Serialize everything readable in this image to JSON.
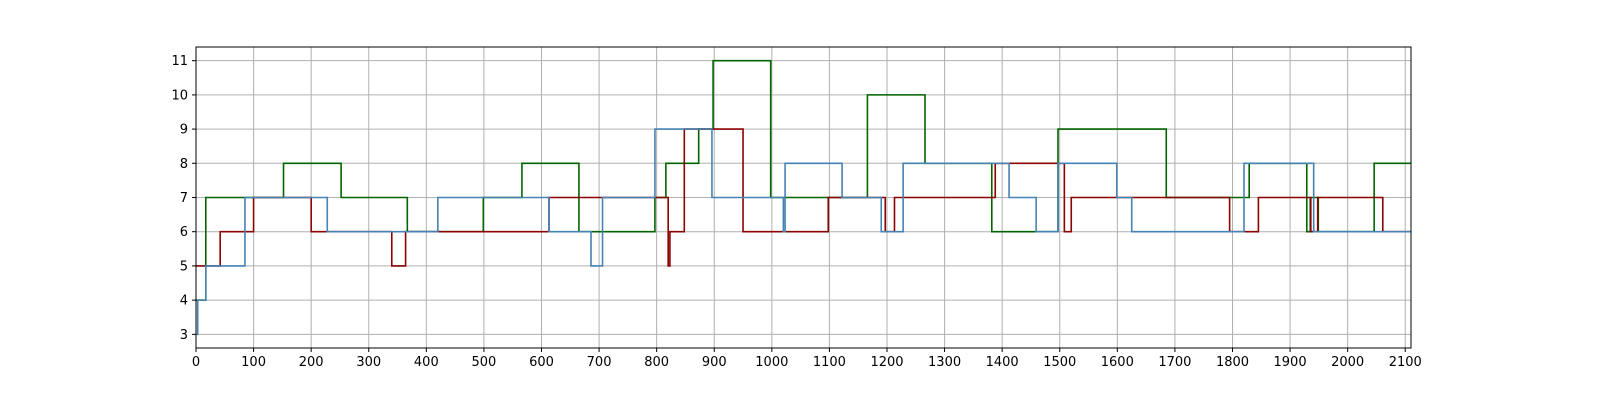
{
  "chart_data": {
    "type": "line",
    "title": "",
    "xlabel": "",
    "ylabel": "",
    "xlim": [
      0,
      2110
    ],
    "ylim": [
      2.6,
      11.4
    ],
    "x_ticks": [
      0,
      100,
      200,
      300,
      400,
      500,
      600,
      700,
      800,
      900,
      1000,
      1100,
      1200,
      1300,
      1400,
      1500,
      1600,
      1700,
      1800,
      1900,
      2000,
      2100
    ],
    "y_ticks": [
      3,
      4,
      5,
      6,
      7,
      8,
      9,
      10,
      11
    ],
    "grid": true,
    "step": "post",
    "series": [
      {
        "color": "#006400",
        "points": [
          [
            0,
            4
          ],
          [
            17,
            7
          ],
          [
            88,
            7
          ],
          [
            152,
            8
          ],
          [
            252,
            7
          ],
          [
            367,
            6
          ],
          [
            499,
            7
          ],
          [
            566,
            8
          ],
          [
            665,
            6
          ],
          [
            797,
            7
          ],
          [
            816,
            8
          ],
          [
            873,
            9
          ],
          [
            898,
            11
          ],
          [
            998,
            7
          ],
          [
            1063,
            7
          ],
          [
            1166,
            10
          ],
          [
            1266,
            8
          ],
          [
            1382,
            6
          ],
          [
            1497,
            9
          ],
          [
            1685,
            7
          ],
          [
            1829,
            8
          ],
          [
            1929,
            6
          ],
          [
            1935,
            7
          ],
          [
            1949,
            6
          ],
          [
            2046,
            8
          ],
          [
            2110,
            8
          ]
        ]
      },
      {
        "color": "#8b0000",
        "points": [
          [
            0,
            5
          ],
          [
            18,
            5
          ],
          [
            42,
            6
          ],
          [
            100,
            7
          ],
          [
            200,
            6
          ],
          [
            228,
            6
          ],
          [
            340,
            5
          ],
          [
            364,
            6
          ],
          [
            418,
            6
          ],
          [
            613,
            7
          ],
          [
            820,
            5
          ],
          [
            823,
            6
          ],
          [
            848,
            9
          ],
          [
            950,
            6
          ],
          [
            1098,
            7
          ],
          [
            1197,
            6
          ],
          [
            1213,
            7
          ],
          [
            1388,
            8
          ],
          [
            1508,
            6
          ],
          [
            1520,
            7
          ],
          [
            1795,
            6
          ],
          [
            1845,
            7
          ],
          [
            1936,
            6
          ],
          [
            1948,
            7
          ],
          [
            2061,
            6
          ],
          [
            2110,
            6
          ]
        ]
      },
      {
        "color": "#4682b4",
        "points": [
          [
            0,
            3
          ],
          [
            3,
            4
          ],
          [
            17,
            5
          ],
          [
            85,
            7
          ],
          [
            228,
            6
          ],
          [
            362,
            6
          ],
          [
            420,
            7
          ],
          [
            613,
            6
          ],
          [
            686,
            5
          ],
          [
            706,
            7
          ],
          [
            797,
            9
          ],
          [
            896,
            7
          ],
          [
            1020,
            6
          ],
          [
            1023,
            8
          ],
          [
            1122,
            7
          ],
          [
            1190,
            6
          ],
          [
            1228,
            8
          ],
          [
            1412,
            7
          ],
          [
            1459,
            6
          ],
          [
            1497,
            8
          ],
          [
            1599,
            7
          ],
          [
            1625,
            6
          ],
          [
            1820,
            8
          ],
          [
            1941,
            6
          ],
          [
            2110,
            6
          ]
        ]
      }
    ]
  }
}
